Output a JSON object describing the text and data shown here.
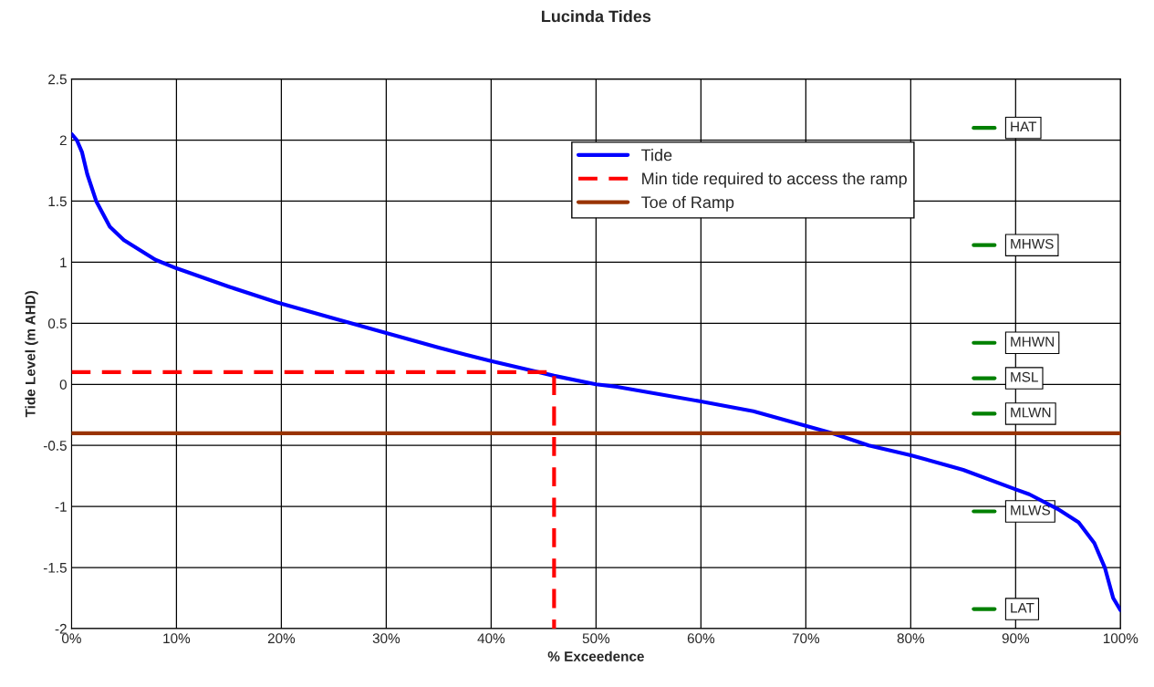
{
  "chart_data": {
    "type": "line",
    "title": "Lucinda Tides",
    "xlabel": "% Exceedence",
    "ylabel": "Tide Level (m AHD)",
    "series": [
      {
        "name": "Tide",
        "color": "#0000ff",
        "line_style": "solid",
        "x": [
          0,
          0.5,
          1,
          1.5,
          2.35,
          3.65,
          5,
          8,
          10,
          15,
          19.6,
          25,
          30,
          35,
          40,
          44,
          46,
          50,
          52,
          56,
          60,
          65,
          70,
          72.5,
          76,
          80,
          85,
          90,
          91.3,
          94,
          96,
          97.5,
          98.5,
          99.3,
          100
        ],
        "values": [
          2.05,
          2.0,
          1.9,
          1.72,
          1.5,
          1.29,
          1.18,
          1.02,
          0.95,
          0.8,
          0.67,
          0.54,
          0.42,
          0.3,
          0.19,
          0.11,
          0.07,
          0.0,
          -0.02,
          -0.08,
          -0.14,
          -0.22,
          -0.34,
          -0.4,
          -0.5,
          -0.58,
          -0.7,
          -0.86,
          -0.9,
          -1.02,
          -1.13,
          -1.3,
          -1.5,
          -1.75,
          -1.85
        ]
      },
      {
        "name": "Min tide required to access the ramp",
        "color": "#ff0000",
        "line_style": "dashed",
        "x": [
          0,
          46,
          46
        ],
        "values": [
          0.1,
          0.1,
          -2
        ]
      },
      {
        "name": "Toe of Ramp",
        "color": "#993300",
        "line_style": "solid",
        "x": [
          0,
          100
        ],
        "values": [
          -0.4,
          -0.4
        ]
      },
      {
        "color": "#008000",
        "x": [
          86,
          88
        ],
        "values": [
          2.1,
          2.1
        ]
      },
      {
        "color": "#008000",
        "x": [
          86,
          88
        ],
        "values": [
          1.14,
          1.14
        ]
      },
      {
        "color": "#008000",
        "x": [
          86,
          88
        ],
        "values": [
          0.34,
          0.34
        ]
      },
      {
        "color": "#008000",
        "x": [
          86,
          88
        ],
        "values": [
          0.05,
          0.05
        ]
      },
      {
        "color": "#008000",
        "x": [
          86,
          88
        ],
        "values": [
          -0.24,
          -0.24
        ]
      },
      {
        "color": "#008000",
        "x": [
          86,
          88
        ],
        "values": [
          -1.04,
          -1.04
        ]
      },
      {
        "color": "#008000",
        "x": [
          86,
          88
        ],
        "values": [
          -1.84,
          -1.84
        ]
      }
    ],
    "annotations": [
      "HAT",
      "MHWS",
      "MHWN",
      "MSL",
      "MLWN",
      "MLWS",
      "LAT"
    ],
    "xlim": [
      0,
      100
    ],
    "xticks": [
      {
        "value": 0,
        "label": "0%"
      },
      {
        "value": 10,
        "label": "10%"
      },
      {
        "value": 20,
        "label": "20%"
      },
      {
        "value": 30,
        "label": "30%"
      },
      {
        "value": 40,
        "label": "40%"
      },
      {
        "value": 50,
        "label": "50%"
      },
      {
        "value": 60,
        "label": "60%"
      },
      {
        "value": 70,
        "label": "70%"
      },
      {
        "value": 80,
        "label": "80%"
      },
      {
        "value": 90,
        "label": "90%"
      },
      {
        "value": 100,
        "label": "100%"
      }
    ],
    "ylim": [
      -2,
      2.5
    ],
    "yticks": [
      -2,
      -1.5,
      -1,
      -0.5,
      0,
      0.5,
      1,
      1.5,
      2,
      2.5
    ],
    "grid": true,
    "legend": "top"
  }
}
